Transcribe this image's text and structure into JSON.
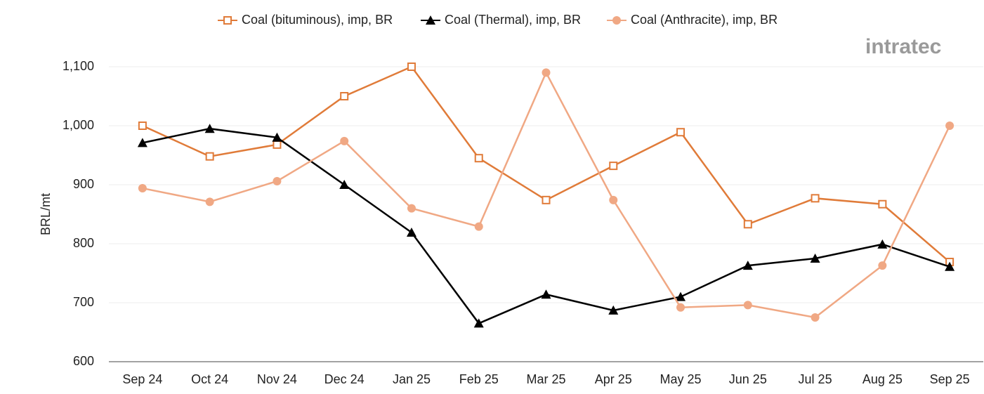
{
  "chart_data": {
    "type": "line",
    "y_label": "BRL/mt",
    "logo": "intratec",
    "categories": [
      "Sep 24",
      "Oct 24",
      "Nov 24",
      "Dec 24",
      "Jan 25",
      "Feb 25",
      "Mar 25",
      "Apr 25",
      "May 25",
      "Jun 25",
      "Jul 25",
      "Aug 25",
      "Sep 25"
    ],
    "series": [
      {
        "name": "Coal (bituminous), imp, BR",
        "color": "#e07b39",
        "marker": "square",
        "values": [
          1000,
          948,
          968,
          1050,
          1100,
          945,
          874,
          932,
          989,
          833,
          877,
          867,
          769
        ]
      },
      {
        "name": "Coal (Thermal), imp, BR",
        "color": "#000000",
        "marker": "triangle",
        "values": [
          971,
          995,
          980,
          900,
          819,
          665,
          714,
          687,
          710,
          763,
          775,
          799,
          761
        ]
      },
      {
        "name": "Coal (Anthracite), imp, BR",
        "color": "#f0a884",
        "marker": "circle",
        "values": [
          894,
          871,
          906,
          974,
          860,
          829,
          1090,
          874,
          692,
          696,
          675,
          763,
          1000
        ]
      }
    ],
    "ylim": [
      600,
      1100
    ],
    "yticks": [
      600,
      700,
      800,
      900,
      {
        "value": 1000,
        "label": "1,000"
      },
      {
        "value": 1100,
        "label": "1,100"
      }
    ],
    "grid": true
  }
}
